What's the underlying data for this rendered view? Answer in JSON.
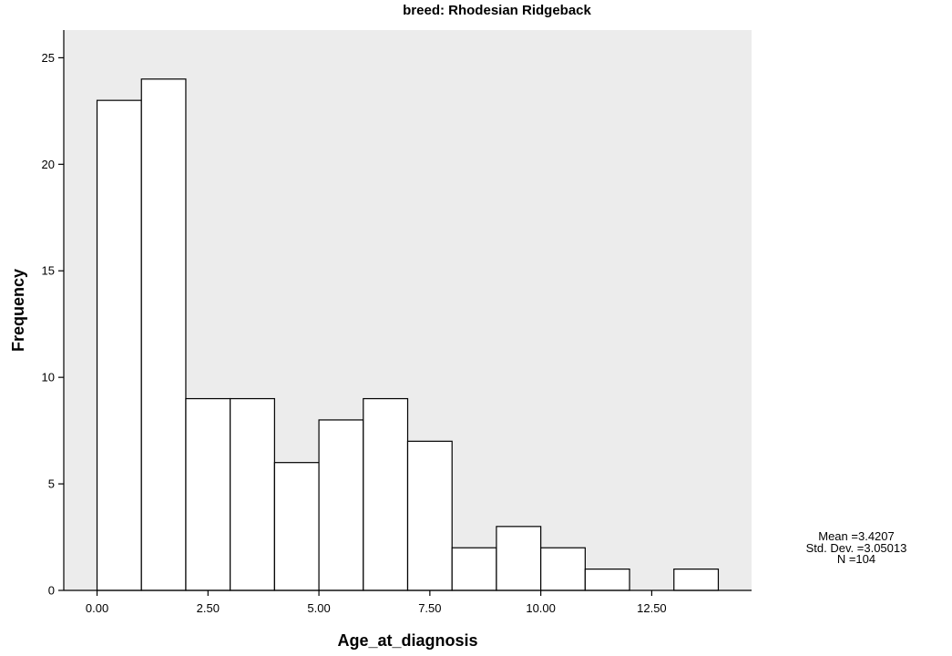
{
  "chart_data": {
    "type": "bar",
    "title": "breed: Rhodesian Ridgeback",
    "xlabel": "Age_at_diagnosis",
    "ylabel": "Frequency",
    "bin_width": 1,
    "bins": [
      {
        "start": 0,
        "end": 1,
        "count": 23
      },
      {
        "start": 1,
        "end": 2,
        "count": 24
      },
      {
        "start": 2,
        "end": 3,
        "count": 9
      },
      {
        "start": 3,
        "end": 4,
        "count": 9
      },
      {
        "start": 4,
        "end": 5,
        "count": 6
      },
      {
        "start": 5,
        "end": 6,
        "count": 8
      },
      {
        "start": 6,
        "end": 7,
        "count": 9
      },
      {
        "start": 7,
        "end": 8,
        "count": 7
      },
      {
        "start": 8,
        "end": 9,
        "count": 2
      },
      {
        "start": 9,
        "end": 10,
        "count": 3
      },
      {
        "start": 10,
        "end": 11,
        "count": 2
      },
      {
        "start": 11,
        "end": 12,
        "count": 1
      },
      {
        "start": 12,
        "end": 13,
        "count": 0
      },
      {
        "start": 13,
        "end": 14,
        "count": 1
      }
    ],
    "xlim": [
      -0.75,
      14.75
    ],
    "ylim": [
      0,
      26.3
    ],
    "x_ticks": [
      0,
      2.5,
      5,
      7.5,
      10,
      12.5
    ],
    "x_tick_labels": [
      "0.00",
      "2.50",
      "5.00",
      "7.50",
      "10.00",
      "12.50"
    ],
    "y_ticks": [
      0,
      5,
      10,
      15,
      20,
      25
    ],
    "y_tick_labels": [
      "0",
      "5",
      "10",
      "15",
      "20",
      "25"
    ],
    "grid": false,
    "plot_background": "#ececec",
    "bar_fill": "#ffffff",
    "bar_stroke": "#000000"
  },
  "stats": {
    "mean": "Mean =3.4207",
    "std_dev": "Std. Dev. =3.05013",
    "n": "N =104"
  }
}
